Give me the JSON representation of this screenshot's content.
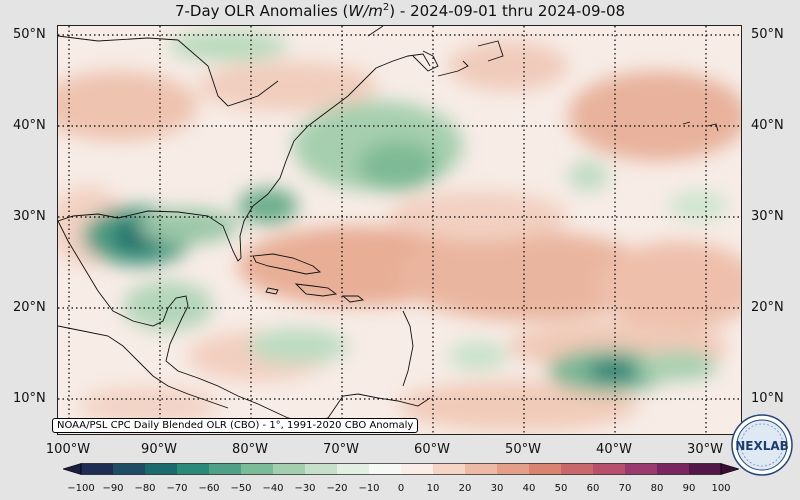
{
  "title": {
    "prefix": "7-Day OLR Anomalies (",
    "unit_base": "W/m",
    "unit_exp": "2",
    "suffix": ") - 2024-09-01 thru 2024-09-08"
  },
  "lat_labels": [
    "50°N",
    "40°N",
    "30°N",
    "20°N",
    "10°N"
  ],
  "lon_labels": [
    "100°W",
    "90°W",
    "80°W",
    "70°W",
    "60°W",
    "50°W",
    "40°W",
    "30°W"
  ],
  "source_note": "NOAA/PSL CPC Daily Blended OLR (CBO) - 1°, 1991-2020 CBO Anomaly",
  "colorbar": {
    "ticks": [
      "−100",
      "−90",
      "−80",
      "−70",
      "−60",
      "−50",
      "−40",
      "−30",
      "−20",
      "−10",
      "0",
      "10",
      "20",
      "30",
      "40",
      "50",
      "60",
      "70",
      "80",
      "90",
      "100"
    ],
    "colors": [
      "#1f2d55",
      "#1f4d66",
      "#1b6b6e",
      "#2a8a7a",
      "#4fa086",
      "#7bbb98",
      "#a3cfae",
      "#c6e0c9",
      "#e2efe2",
      "#f6f9f5",
      "#fbeee8",
      "#f6d4c6",
      "#eeb9a5",
      "#e49f88",
      "#d88471",
      "#c9686a",
      "#b84f6c",
      "#9b3a6e",
      "#7a2560",
      "#531648"
    ]
  },
  "logo": {
    "text": "NEXLAB"
  }
}
